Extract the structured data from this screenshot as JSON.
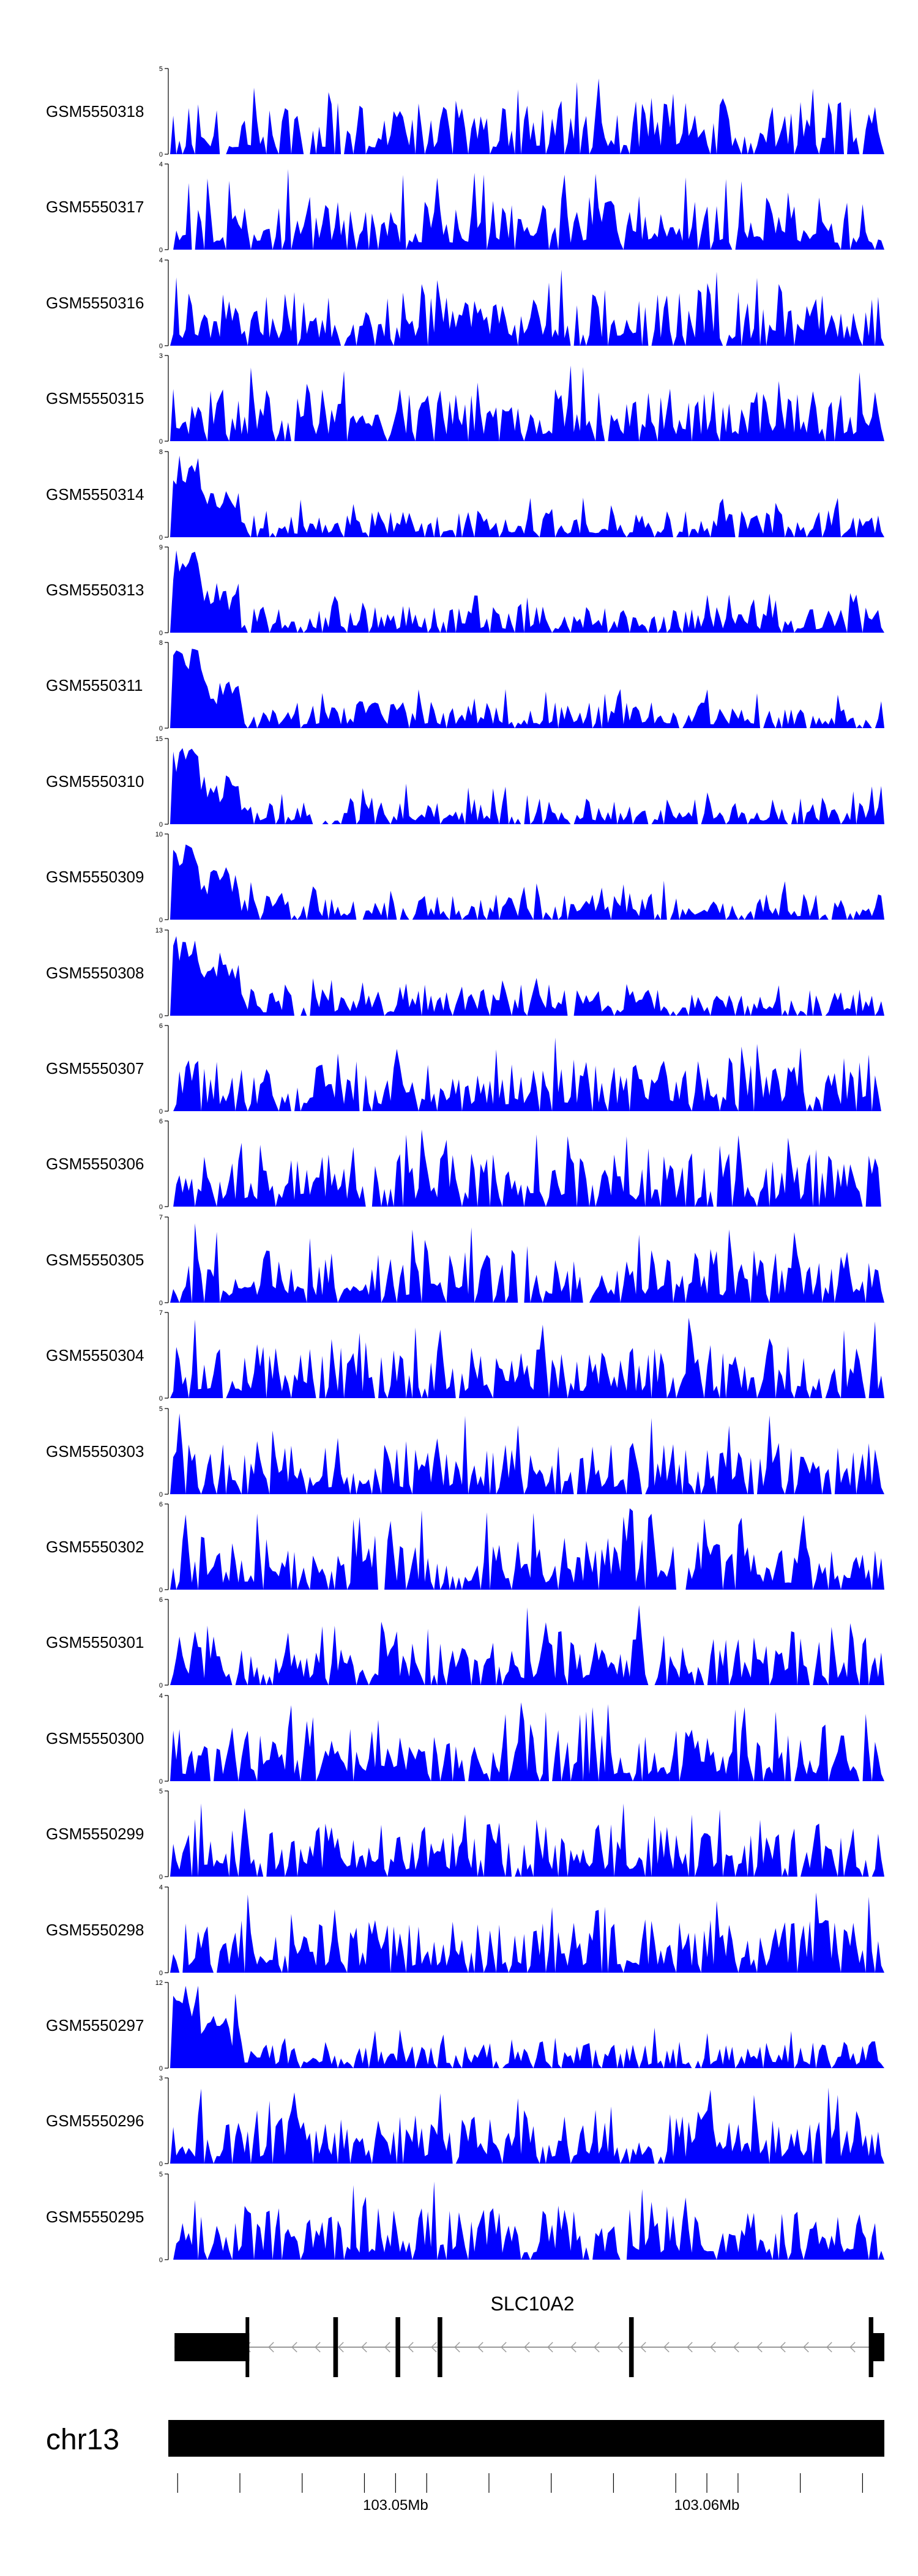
{
  "chart_data": {
    "type": "area",
    "region": {
      "chrom": "chr13",
      "start": 103042700,
      "end": 103065700
    },
    "fill_color": "#0000FF",
    "tracks": [
      {
        "name": "GSM5550318",
        "ymax": "5",
        "ymin": "0",
        "seed": 318
      },
      {
        "name": "GSM5550317",
        "ymax": "4",
        "ymin": "0",
        "seed": 317
      },
      {
        "name": "GSM5550316",
        "ymax": "4",
        "ymin": "0",
        "seed": 316
      },
      {
        "name": "GSM5550315",
        "ymax": "3",
        "ymin": "0",
        "seed": 315
      },
      {
        "name": "GSM5550314",
        "ymax": "8",
        "ymin": "0",
        "seed": 314
      },
      {
        "name": "GSM5550313",
        "ymax": "9",
        "ymin": "0",
        "seed": 313
      },
      {
        "name": "GSM5550311",
        "ymax": "8",
        "ymin": "0",
        "seed": 311
      },
      {
        "name": "GSM5550310",
        "ymax": "15",
        "ymin": "0",
        "seed": 310
      },
      {
        "name": "GSM5550309",
        "ymax": "10",
        "ymin": "0",
        "seed": 309
      },
      {
        "name": "GSM5550308",
        "ymax": "13",
        "ymin": "0",
        "seed": 308
      },
      {
        "name": "GSM5550307",
        "ymax": "6",
        "ymin": "0",
        "seed": 307
      },
      {
        "name": "GSM5550306",
        "ymax": "6",
        "ymin": "0",
        "seed": 306
      },
      {
        "name": "GSM5550305",
        "ymax": "7",
        "ymin": "0",
        "seed": 305
      },
      {
        "name": "GSM5550304",
        "ymax": "7",
        "ymin": "0",
        "seed": 304
      },
      {
        "name": "GSM5550303",
        "ymax": "5",
        "ymin": "0",
        "seed": 303
      },
      {
        "name": "GSM5550302",
        "ymax": "6",
        "ymin": "0",
        "seed": 302
      },
      {
        "name": "GSM5550301",
        "ymax": "6",
        "ymin": "0",
        "seed": 301
      },
      {
        "name": "GSM5550300",
        "ymax": "4",
        "ymin": "0",
        "seed": 300
      },
      {
        "name": "GSM5550299",
        "ymax": "5",
        "ymin": "0",
        "seed": 299
      },
      {
        "name": "GSM5550298",
        "ymax": "4",
        "ymin": "0",
        "seed": 298
      },
      {
        "name": "GSM5550297",
        "ymax": "12",
        "ymin": "0",
        "seed": 297
      },
      {
        "name": "GSM5550296",
        "ymax": "3",
        "ymin": "0",
        "seed": 296
      },
      {
        "name": "GSM5550295",
        "ymax": "5",
        "ymin": "0",
        "seed": 295
      }
    ],
    "gene": {
      "name": "SLC10A2",
      "strand": "-",
      "exons": [
        [
          103042900,
          103045300
        ],
        [
          103048000,
          103048150
        ],
        [
          103050000,
          103050150
        ],
        [
          103051350,
          103051500
        ],
        [
          103057500,
          103057650
        ],
        [
          103065200,
          103065700
        ]
      ]
    },
    "chromosome": {
      "label": "chr13"
    },
    "axis": {
      "tick_labels": [
        {
          "pos": 103050000,
          "label": "103.05Mb"
        },
        {
          "pos": 103060000,
          "label": "103.06Mb"
        }
      ],
      "minor_ticks": [
        103043000,
        103045000,
        103047000,
        103049000,
        103051000,
        103053000,
        103055000,
        103057000,
        103059000,
        103061000,
        103063000,
        103065000
      ]
    }
  }
}
